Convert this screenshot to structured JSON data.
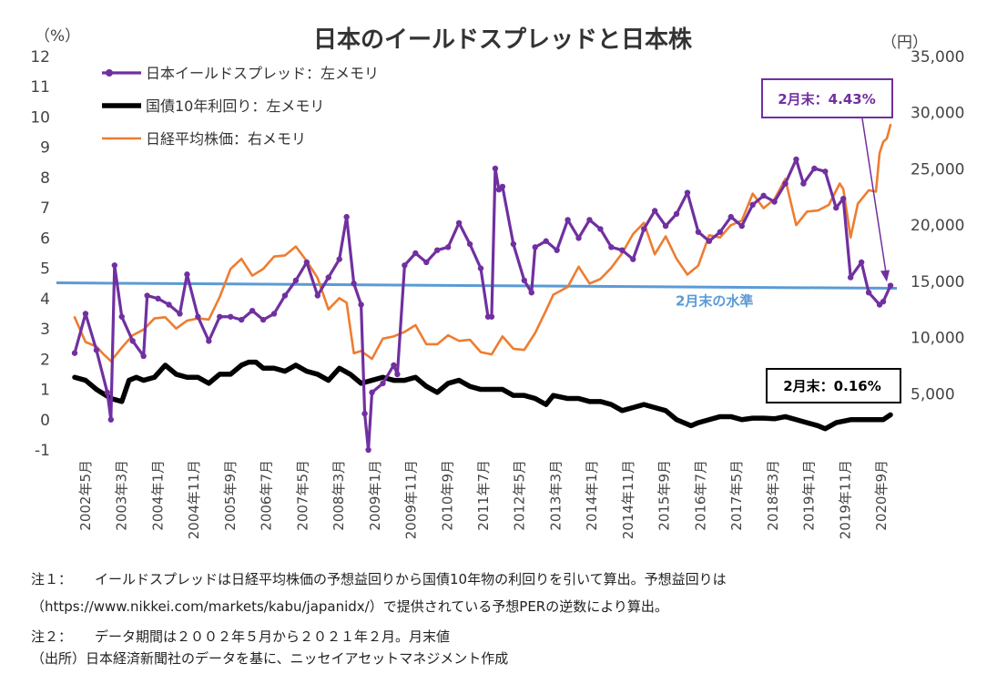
{
  "chart_data": {
    "type": "line",
    "title": "日本のイールドスプレッドと日本株",
    "left_axis_unit": "（%）",
    "right_axis_unit": "（円）",
    "left_axis": {
      "min": -1,
      "max": 12,
      "ticks": [
        "12",
        "11",
        "10",
        "9",
        "8",
        "7",
        "6",
        "5",
        "4",
        "3",
        "2",
        "1",
        "0",
        "-1"
      ]
    },
    "right_axis": {
      "min": 0,
      "max": 35000,
      "ticks": [
        "35,000",
        "30,000",
        "25,000",
        "20,000",
        "15,000",
        "10,000",
        "5,000"
      ]
    },
    "x_tick_labels": [
      "2002年5月",
      "2003年3月",
      "2004年1月",
      "2004年11月",
      "2005年9月",
      "2006年7月",
      "2007年5月",
      "2008年3月",
      "2009年1月",
      "2009年11月",
      "2010年9月",
      "2011年7月",
      "2012年5月",
      "2013年3月",
      "2014年1月",
      "2014年11月",
      "2015年9月",
      "2016年7月",
      "2017年5月",
      "2018年3月",
      "2019年1月",
      "2019年11月",
      "2020年9月"
    ],
    "legend": [
      "日本イールドスプレッド：左メモリ",
      "国債10年利回り：左メモリ",
      "日経平均株価：右メモリ"
    ],
    "series_colors": {
      "spread": "#7030a0",
      "jgb": "#000000",
      "nikkei": "#ed7d31",
      "level": "#5b9bd5"
    },
    "series": [
      {
        "name": "日本イールドスプレッド：左メモリ",
        "axis": "left",
        "points": [
          [
            "2002-05",
            2.2
          ],
          [
            "2002-08",
            3.5
          ],
          [
            "2002-11",
            2.3
          ],
          [
            "2003-02",
            0.9
          ],
          [
            "2003-03",
            0.0
          ],
          [
            "2003-04",
            5.1
          ],
          [
            "2003-06",
            3.4
          ],
          [
            "2003-09",
            2.6
          ],
          [
            "2003-12",
            2.1
          ],
          [
            "2004-01",
            4.1
          ],
          [
            "2004-04",
            4.0
          ],
          [
            "2004-07",
            3.8
          ],
          [
            "2004-10",
            3.5
          ],
          [
            "2004-12",
            4.8
          ],
          [
            "2005-03",
            3.4
          ],
          [
            "2005-06",
            2.6
          ],
          [
            "2005-09",
            3.4
          ],
          [
            "2005-12",
            3.4
          ],
          [
            "2006-03",
            3.3
          ],
          [
            "2006-06",
            3.6
          ],
          [
            "2006-09",
            3.3
          ],
          [
            "2006-12",
            3.5
          ],
          [
            "2007-03",
            4.1
          ],
          [
            "2007-06",
            4.6
          ],
          [
            "2007-09",
            5.2
          ],
          [
            "2007-12",
            4.1
          ],
          [
            "2008-03",
            4.7
          ],
          [
            "2008-06",
            5.3
          ],
          [
            "2008-08",
            6.7
          ],
          [
            "2008-10",
            4.5
          ],
          [
            "2008-12",
            3.8
          ],
          [
            "2009-01",
            0.2
          ],
          [
            "2009-02",
            -1.0
          ],
          [
            "2009-03",
            0.9
          ],
          [
            "2009-06",
            1.2
          ],
          [
            "2009-09",
            1.8
          ],
          [
            "2009-10",
            1.5
          ],
          [
            "2009-12",
            5.1
          ],
          [
            "2010-03",
            5.5
          ],
          [
            "2010-06",
            5.2
          ],
          [
            "2010-09",
            5.6
          ],
          [
            "2010-12",
            5.7
          ],
          [
            "2011-03",
            6.5
          ],
          [
            "2011-06",
            5.8
          ],
          [
            "2011-09",
            5.0
          ],
          [
            "2011-11",
            3.4
          ],
          [
            "2011-12",
            3.4
          ],
          [
            "2012-01",
            8.3
          ],
          [
            "2012-02",
            7.6
          ],
          [
            "2012-03",
            7.7
          ],
          [
            "2012-06",
            5.8
          ],
          [
            "2012-09",
            4.6
          ],
          [
            "2012-11",
            4.2
          ],
          [
            "2012-12",
            5.7
          ],
          [
            "2013-03",
            5.9
          ],
          [
            "2013-06",
            5.6
          ],
          [
            "2013-09",
            6.6
          ],
          [
            "2013-12",
            6.0
          ],
          [
            "2014-03",
            6.6
          ],
          [
            "2014-06",
            6.3
          ],
          [
            "2014-09",
            5.7
          ],
          [
            "2014-12",
            5.6
          ],
          [
            "2015-03",
            5.3
          ],
          [
            "2015-06",
            6.3
          ],
          [
            "2015-09",
            6.9
          ],
          [
            "2015-12",
            6.4
          ],
          [
            "2016-03",
            6.8
          ],
          [
            "2016-06",
            7.5
          ],
          [
            "2016-09",
            6.2
          ],
          [
            "2016-12",
            5.9
          ],
          [
            "2017-03",
            6.2
          ],
          [
            "2017-06",
            6.7
          ],
          [
            "2017-09",
            6.4
          ],
          [
            "2017-12",
            7.1
          ],
          [
            "2018-03",
            7.4
          ],
          [
            "2018-06",
            7.2
          ],
          [
            "2018-09",
            7.8
          ],
          [
            "2018-12",
            8.6
          ],
          [
            "2019-02",
            7.8
          ],
          [
            "2019-05",
            8.3
          ],
          [
            "2019-08",
            8.2
          ],
          [
            "2019-11",
            7.0
          ],
          [
            "2020-01",
            7.3
          ],
          [
            "2020-03",
            4.7
          ],
          [
            "2020-06",
            5.2
          ],
          [
            "2020-08",
            4.2
          ],
          [
            "2020-11",
            3.8
          ],
          [
            "2020-12",
            3.9
          ],
          [
            "2021-02",
            4.43
          ]
        ]
      },
      {
        "name": "国債10年利回り：左メモリ",
        "axis": "left",
        "points": [
          [
            "2002-05",
            1.4
          ],
          [
            "2002-08",
            1.3
          ],
          [
            "2002-11",
            1.0
          ],
          [
            "2003-03",
            0.7
          ],
          [
            "2003-06",
            0.6
          ],
          [
            "2003-08",
            1.3
          ],
          [
            "2003-10",
            1.4
          ],
          [
            "2003-12",
            1.3
          ],
          [
            "2004-03",
            1.4
          ],
          [
            "2004-06",
            1.8
          ],
          [
            "2004-09",
            1.5
          ],
          [
            "2004-12",
            1.4
          ],
          [
            "2005-03",
            1.4
          ],
          [
            "2005-06",
            1.2
          ],
          [
            "2005-09",
            1.5
          ],
          [
            "2005-12",
            1.5
          ],
          [
            "2006-03",
            1.8
          ],
          [
            "2006-05",
            1.9
          ],
          [
            "2006-07",
            1.9
          ],
          [
            "2006-09",
            1.7
          ],
          [
            "2006-12",
            1.7
          ],
          [
            "2007-03",
            1.6
          ],
          [
            "2007-06",
            1.8
          ],
          [
            "2007-09",
            1.6
          ],
          [
            "2007-12",
            1.5
          ],
          [
            "2008-03",
            1.3
          ],
          [
            "2008-06",
            1.7
          ],
          [
            "2008-09",
            1.5
          ],
          [
            "2008-12",
            1.2
          ],
          [
            "2009-03",
            1.3
          ],
          [
            "2009-06",
            1.4
          ],
          [
            "2009-09",
            1.3
          ],
          [
            "2009-12",
            1.3
          ],
          [
            "2010-03",
            1.4
          ],
          [
            "2010-06",
            1.1
          ],
          [
            "2010-09",
            0.9
          ],
          [
            "2010-12",
            1.2
          ],
          [
            "2011-03",
            1.3
          ],
          [
            "2011-06",
            1.1
          ],
          [
            "2011-09",
            1.0
          ],
          [
            "2011-12",
            1.0
          ],
          [
            "2012-03",
            1.0
          ],
          [
            "2012-06",
            0.8
          ],
          [
            "2012-09",
            0.8
          ],
          [
            "2012-12",
            0.7
          ],
          [
            "2013-03",
            0.5
          ],
          [
            "2013-05",
            0.8
          ],
          [
            "2013-09",
            0.7
          ],
          [
            "2013-12",
            0.7
          ],
          [
            "2014-03",
            0.6
          ],
          [
            "2014-06",
            0.6
          ],
          [
            "2014-09",
            0.5
          ],
          [
            "2014-12",
            0.3
          ],
          [
            "2015-03",
            0.4
          ],
          [
            "2015-06",
            0.5
          ],
          [
            "2015-09",
            0.4
          ],
          [
            "2015-12",
            0.3
          ],
          [
            "2016-03",
            0.0
          ],
          [
            "2016-07",
            -0.2
          ],
          [
            "2016-09",
            -0.1
          ],
          [
            "2016-12",
            0.0
          ],
          [
            "2017-03",
            0.1
          ],
          [
            "2017-06",
            0.1
          ],
          [
            "2017-09",
            0.0
          ],
          [
            "2017-12",
            0.05
          ],
          [
            "2018-03",
            0.05
          ],
          [
            "2018-06",
            0.03
          ],
          [
            "2018-09",
            0.1
          ],
          [
            "2018-12",
            0.0
          ],
          [
            "2019-03",
            -0.1
          ],
          [
            "2019-06",
            -0.2
          ],
          [
            "2019-08",
            -0.3
          ],
          [
            "2019-11",
            -0.1
          ],
          [
            "2020-01",
            -0.05
          ],
          [
            "2020-03",
            0.0
          ],
          [
            "2020-06",
            0.0
          ],
          [
            "2020-09",
            0.0
          ],
          [
            "2020-12",
            0.0
          ],
          [
            "2021-02",
            0.16
          ]
        ]
      },
      {
        "name": "日経平均株価：右メモリ",
        "axis": "right",
        "points": [
          [
            "2002-05",
            11800
          ],
          [
            "2002-08",
            9600
          ],
          [
            "2002-11",
            9200
          ],
          [
            "2003-01",
            8500
          ],
          [
            "2003-03",
            7900
          ],
          [
            "2003-06",
            9100
          ],
          [
            "2003-09",
            10200
          ],
          [
            "2003-12",
            10700
          ],
          [
            "2004-03",
            11700
          ],
          [
            "2004-06",
            11800
          ],
          [
            "2004-09",
            10800
          ],
          [
            "2004-12",
            11500
          ],
          [
            "2005-03",
            11700
          ],
          [
            "2005-06",
            11600
          ],
          [
            "2005-09",
            13600
          ],
          [
            "2005-12",
            16100
          ],
          [
            "2006-03",
            17000
          ],
          [
            "2006-06",
            15500
          ],
          [
            "2006-09",
            16100
          ],
          [
            "2006-12",
            17200
          ],
          [
            "2007-03",
            17300
          ],
          [
            "2007-06",
            18100
          ],
          [
            "2007-09",
            16800
          ],
          [
            "2007-12",
            15300
          ],
          [
            "2008-03",
            12500
          ],
          [
            "2008-06",
            13500
          ],
          [
            "2008-08",
            13100
          ],
          [
            "2008-10",
            8600
          ],
          [
            "2008-12",
            8800
          ],
          [
            "2009-03",
            8100
          ],
          [
            "2009-06",
            9900
          ],
          [
            "2009-09",
            10100
          ],
          [
            "2009-12",
            10500
          ],
          [
            "2010-03",
            11100
          ],
          [
            "2010-06",
            9400
          ],
          [
            "2010-09",
            9400
          ],
          [
            "2010-12",
            10200
          ],
          [
            "2011-03",
            9700
          ],
          [
            "2011-06",
            9800
          ],
          [
            "2011-09",
            8700
          ],
          [
            "2011-12",
            8500
          ],
          [
            "2012-03",
            10100
          ],
          [
            "2012-06",
            9000
          ],
          [
            "2012-09",
            8900
          ],
          [
            "2012-12",
            10400
          ],
          [
            "2013-03",
            12400
          ],
          [
            "2013-05",
            13800
          ],
          [
            "2013-09",
            14500
          ],
          [
            "2013-12",
            16300
          ],
          [
            "2014-03",
            14800
          ],
          [
            "2014-06",
            15200
          ],
          [
            "2014-09",
            16200
          ],
          [
            "2014-12",
            17500
          ],
          [
            "2015-03",
            19200
          ],
          [
            "2015-06",
            20200
          ],
          [
            "2015-09",
            17400
          ],
          [
            "2015-12",
            19000
          ],
          [
            "2016-03",
            17000
          ],
          [
            "2016-06",
            15600
          ],
          [
            "2016-09",
            16400
          ],
          [
            "2016-12",
            19100
          ],
          [
            "2017-03",
            18900
          ],
          [
            "2017-06",
            20000
          ],
          [
            "2017-09",
            20400
          ],
          [
            "2017-12",
            22800
          ],
          [
            "2018-03",
            21500
          ],
          [
            "2018-06",
            22300
          ],
          [
            "2018-09",
            24100
          ],
          [
            "2018-12",
            20000
          ],
          [
            "2019-03",
            21200
          ],
          [
            "2019-06",
            21300
          ],
          [
            "2019-09",
            21800
          ],
          [
            "2019-12",
            23700
          ],
          [
            "2020-01",
            23200
          ],
          [
            "2020-03",
            18900
          ],
          [
            "2020-05",
            21900
          ],
          [
            "2020-08",
            23100
          ],
          [
            "2020-10",
            22977
          ],
          [
            "2020-11",
            26400
          ],
          [
            "2020-12",
            27400
          ],
          [
            "2021-01",
            27700
          ],
          [
            "2021-02",
            28900
          ]
        ]
      }
    ],
    "level_line": {
      "value": 4.43,
      "label": "2月末の水準"
    },
    "callouts": [
      {
        "text": "2月末：4.43%"
      },
      {
        "text": "2月末：0.16%"
      }
    ]
  },
  "notes": {
    "note1_label": "注１：",
    "note1_line1": "イールドスプレッドは日経平均株価の予想益回りから国債10年物の利回りを引いて算出。予想益回りは",
    "note1_line2": "（https://www.nikkei.com/markets/kabu/japanidx/）で提供されている予想PERの逆数により算出。",
    "note2_label": "注２：",
    "note2_text": "データ期間は２００２年５月から２０２１年２月。月末値",
    "source": "（出所）日本経済新聞社のデータを基に、ニッセイアセットマネジメント作成"
  }
}
